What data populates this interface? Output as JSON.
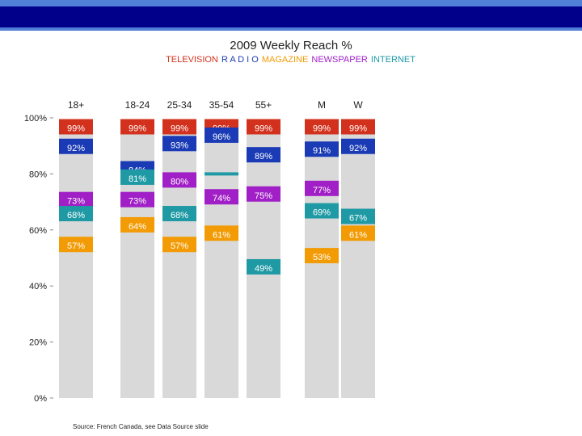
{
  "header": {
    "band_color_main": "#00008b",
    "band_color_accent": "#4f7fd6"
  },
  "chart_data": {
    "type": "bar",
    "title": "2009 Weekly Reach %",
    "legend": [
      "TELEVISION",
      "R A D I O",
      "MAGAZINE",
      "NEWSPAPER",
      "INTERNET"
    ],
    "legend_colors": [
      "#d2321d",
      "#1a3bb5",
      "#f29b05",
      "#a01fc6",
      "#1f9aa5"
    ],
    "categories": [
      "18+",
      "18-24",
      "25-34",
      "35-54",
      "55+",
      "M",
      "W"
    ],
    "ylim": [
      0,
      100
    ],
    "yticks": [
      0,
      20,
      40,
      60,
      80,
      100
    ],
    "ytick_labels": [
      "0%",
      "20%",
      "40%",
      "60%",
      "80%",
      "100%"
    ],
    "series": [
      {
        "name": "TELEVISION",
        "values": [
          99,
          99,
          99,
          99,
          99,
          99,
          99
        ],
        "labels": [
          "99%",
          "99%",
          "99%",
          "99%",
          "99%",
          "99%",
          "99%"
        ]
      },
      {
        "name": "R A D I O",
        "values": [
          92,
          84,
          93,
          96,
          89,
          91,
          92
        ],
        "labels": [
          "92%",
          "84%",
          "93%",
          "96%",
          "89%",
          "91%",
          "92%"
        ]
      },
      {
        "name": "MAGAZINE",
        "values": [
          57,
          64,
          57,
          61,
          49,
          53,
          61
        ],
        "labels": [
          "57%",
          "64%",
          "57%",
          "61%",
          "49%",
          "53%",
          "61%"
        ]
      },
      {
        "name": "NEWSPAPER",
        "values": [
          73,
          73,
          80,
          74,
          75,
          77,
          67
        ],
        "labels": [
          "73%",
          "73%",
          "80%",
          "74%",
          "75%",
          "77%",
          "67%"
        ]
      },
      {
        "name": "INTERNET",
        "values": [
          68,
          81,
          68,
          80,
          49,
          69,
          67
        ],
        "labels": [
          "68%",
          "81%",
          "68%",
          "",
          "49%",
          "69%",
          "67%"
        ]
      }
    ],
    "source": "Source: French Canada, see Data Source slide"
  }
}
